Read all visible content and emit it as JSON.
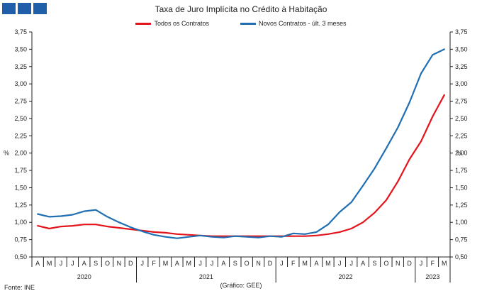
{
  "chart_data": {
    "type": "line",
    "title": "Taxa de Juro Implícita no Crédito à Habitação",
    "ylabel_left": "%",
    "ylabel_right": "%",
    "ylim": [
      0.5,
      3.75
    ],
    "yticks": [
      "0,50",
      "0,75",
      "1,00",
      "1,25",
      "1,50",
      "1,75",
      "2,00",
      "2,25",
      "2,50",
      "2,75",
      "3,00",
      "3,25",
      "3,50",
      "3,75"
    ],
    "x": [
      "A",
      "M",
      "J",
      "J",
      "A",
      "S",
      "O",
      "N",
      "D",
      "J",
      "F",
      "M",
      "A",
      "M",
      "J",
      "J",
      "A",
      "S",
      "O",
      "N",
      "D",
      "J",
      "F",
      "M",
      "A",
      "M",
      "J",
      "J",
      "A",
      "S",
      "O",
      "N",
      "D",
      "J",
      "F",
      "M"
    ],
    "year_labels": [
      {
        "label": "2020",
        "from": 0,
        "to": 8
      },
      {
        "label": "2021",
        "from": 9,
        "to": 20
      },
      {
        "label": "2022",
        "from": 21,
        "to": 32
      },
      {
        "label": "2023",
        "from": 33,
        "to": 35
      }
    ],
    "series": [
      {
        "name": "Todos os Contratos",
        "color": "#e3141b",
        "values": [
          0.95,
          0.91,
          0.94,
          0.95,
          0.97,
          0.97,
          0.94,
          0.92,
          0.9,
          0.88,
          0.86,
          0.85,
          0.83,
          0.82,
          0.81,
          0.8,
          0.8,
          0.8,
          0.8,
          0.8,
          0.8,
          0.8,
          0.8,
          0.8,
          0.81,
          0.83,
          0.86,
          0.91,
          1.0,
          1.14,
          1.32,
          1.59,
          1.91,
          2.17,
          2.53,
          2.84
        ]
      },
      {
        "name": "Novos Contratos - últ. 3 meses",
        "color": "#1f6fb2",
        "values": [
          1.12,
          1.08,
          1.09,
          1.11,
          1.16,
          1.18,
          1.08,
          1.0,
          0.93,
          0.87,
          0.82,
          0.79,
          0.77,
          0.79,
          0.81,
          0.79,
          0.78,
          0.8,
          0.79,
          0.78,
          0.8,
          0.79,
          0.84,
          0.83,
          0.86,
          0.97,
          1.15,
          1.29,
          1.53,
          1.78,
          2.07,
          2.37,
          2.73,
          3.15,
          3.42,
          3.5
        ]
      }
    ]
  },
  "footer": {
    "source": "Fonte: INE",
    "credit": "(Gráfico: GEE)"
  }
}
